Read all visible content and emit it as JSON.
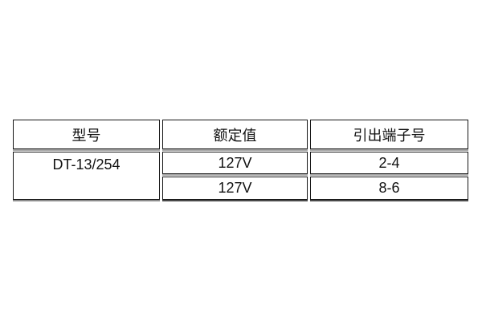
{
  "page": {
    "background_color": "#ffffff"
  },
  "table": {
    "type": "table",
    "columns": [
      "型号",
      "额定值",
      "引出端子号"
    ],
    "model": "DT-13/254",
    "rows": [
      {
        "rated_value": "127V",
        "terminal_no": "2-4"
      },
      {
        "rated_value": "127V",
        "terminal_no": "8-6"
      }
    ],
    "colors": {
      "border": "#161616",
      "row_shadow": "#a8a8a8",
      "bottom_shadow": "#4a4a4a",
      "text": "#111111",
      "cell_background": "#ffffff"
    }
  }
}
